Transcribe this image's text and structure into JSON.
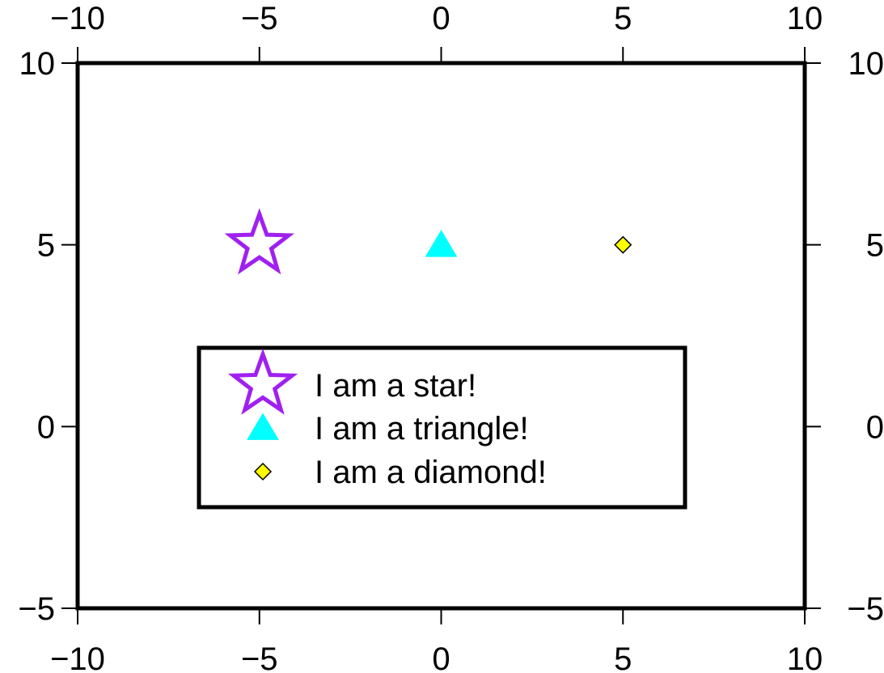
{
  "chart_data": {
    "type": "scatter",
    "xlim": [
      -10,
      10
    ],
    "ylim": [
      -5,
      10
    ],
    "xticks": [
      -10,
      -5,
      0,
      5,
      10
    ],
    "yticks": [
      -5,
      0,
      5,
      10
    ],
    "xtick_labels": [
      "−10",
      "−5",
      "0",
      "5",
      "10"
    ],
    "ytick_labels": [
      "−5",
      "0",
      "5",
      "10"
    ],
    "grid": false,
    "legend_position": "center",
    "series": [
      {
        "name": "I am a star!",
        "marker": "star-icon",
        "x": [
          -5
        ],
        "y": [
          5
        ],
        "stroke": "#a020f0",
        "fill": "#ffffff"
      },
      {
        "name": "I am a triangle!",
        "marker": "triangle-icon",
        "x": [
          0
        ],
        "y": [
          5
        ],
        "stroke": "#00ffff",
        "fill": "#00ffff"
      },
      {
        "name": "I am a diamond!",
        "marker": "diamond-icon",
        "x": [
          5
        ],
        "y": [
          5
        ],
        "stroke": "#000000",
        "fill": "#ffff00"
      }
    ]
  }
}
